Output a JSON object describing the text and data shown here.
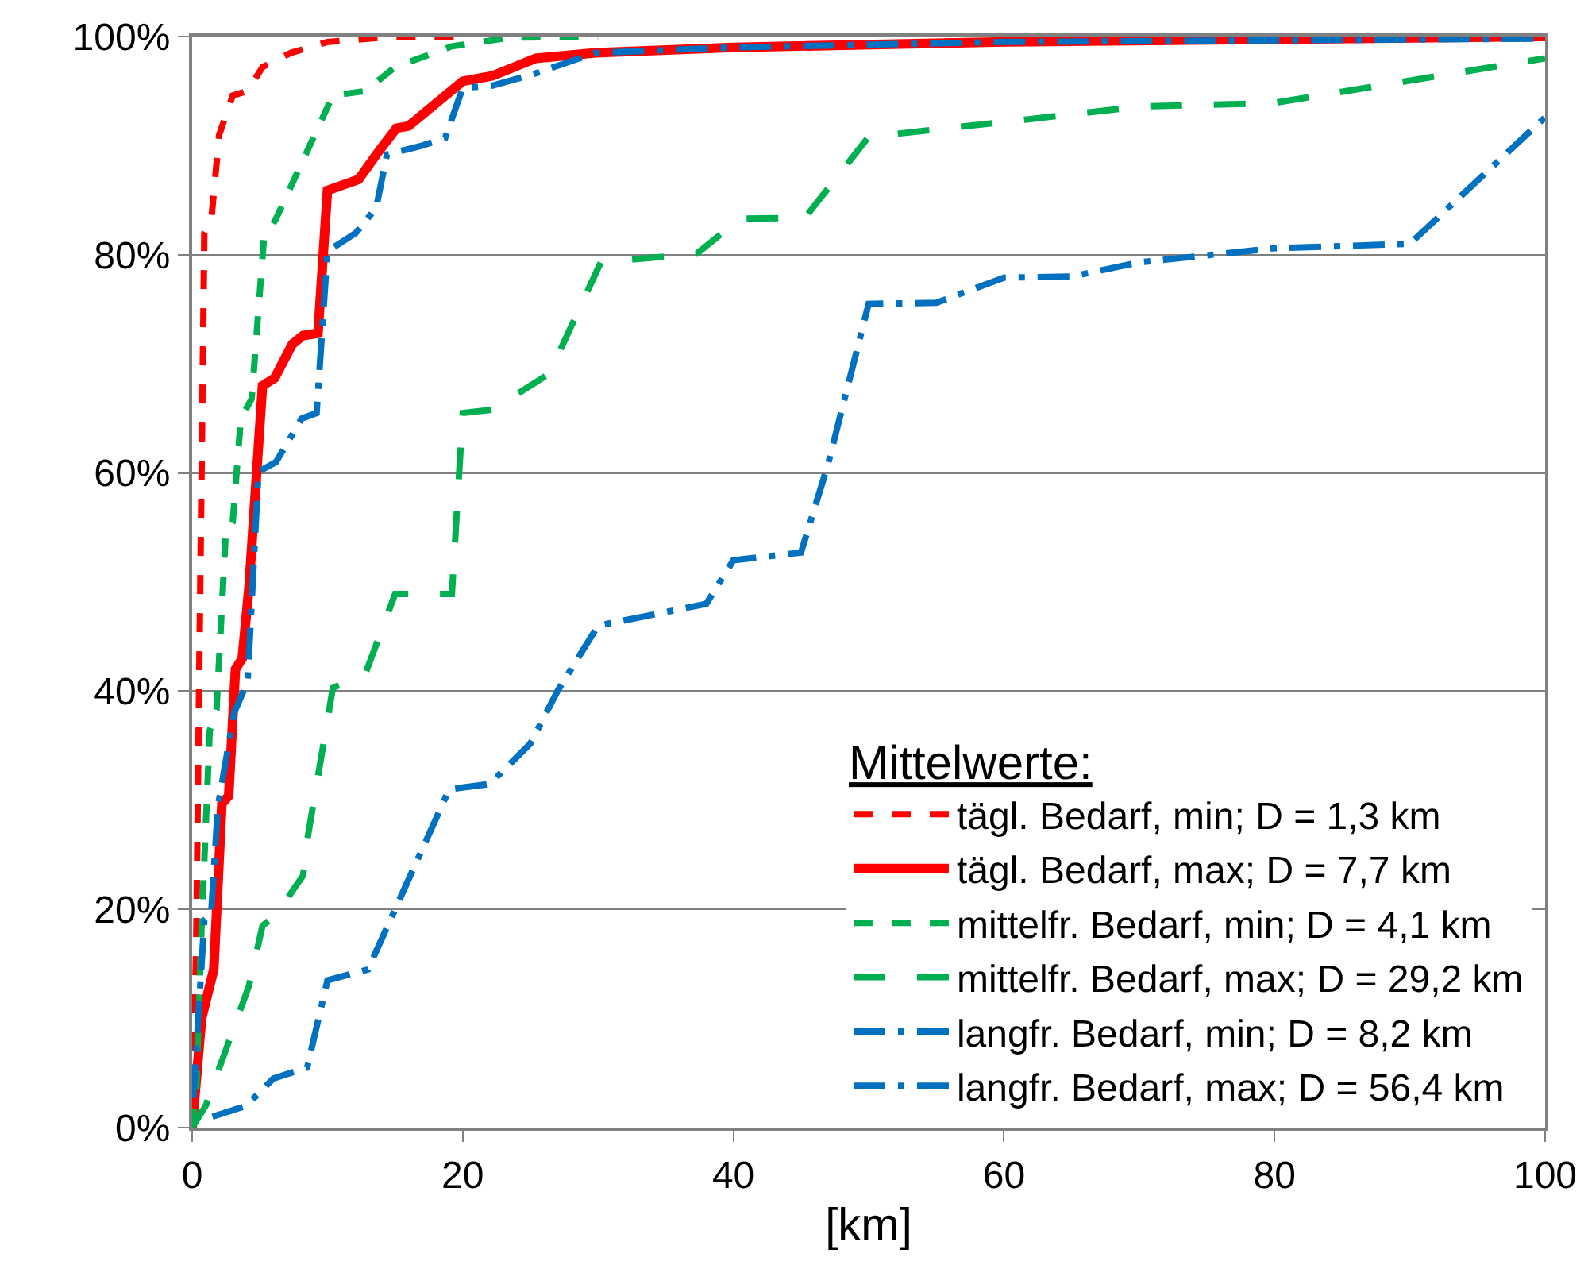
{
  "chart_data": {
    "type": "line",
    "xlabel": "[km]",
    "legend_title": "Mittelwerte:",
    "legend": "bottom right",
    "grid": "y",
    "xlim": [
      0,
      100
    ],
    "xticks": [
      0,
      20,
      40,
      60,
      80,
      100
    ],
    "ylim": [
      0,
      100
    ],
    "yticks": [
      {
        "value": 0,
        "label": "0%"
      },
      {
        "value": 20,
        "label": "20%"
      },
      {
        "value": 40,
        "label": "40%"
      },
      {
        "value": 60,
        "label": "60%"
      },
      {
        "value": 80,
        "label": "80%"
      },
      {
        "value": 100,
        "label": "100%"
      }
    ],
    "series": [
      {
        "name": "tägl. Bedarf, min; D = 1,3 km",
        "color": "#ff0000",
        "line_style": "dashed",
        "x": [
          0,
          0.3,
          0.5,
          0.9,
          1.4,
          2,
          3,
          4.1,
          5.2,
          7.3,
          10,
          15,
          20
        ],
        "values": [
          0,
          17,
          39,
          82,
          83,
          91,
          94.6,
          95,
          97.2,
          98.5,
          99.5,
          100,
          100
        ]
      },
      {
        "name": "tägl. Bedarf, max; D = 7,7 km",
        "color": "#ff0000",
        "line_style": "solid",
        "x": [
          0,
          0.7,
          1.6,
          2.2,
          2.7,
          3.2,
          3.7,
          4.2,
          5.2,
          6.1,
          7.4,
          8.2,
          9.3,
          10,
          12.3,
          13.8,
          15.1,
          16,
          20,
          22.2,
          25.4,
          29.8,
          40,
          60,
          100
        ],
        "values": [
          0,
          10,
          14.5,
          29.7,
          30.4,
          42,
          43,
          49.5,
          68,
          68.7,
          71.8,
          72.6,
          72.8,
          85.9,
          86.9,
          89.5,
          91.6,
          91.8,
          95.9,
          96.4,
          98,
          98.5,
          99,
          99.5,
          100
        ]
      },
      {
        "name": "mittelfr. Bedarf, min; D = 4,1 km",
        "color": "#00b050",
        "line_style": "dashed",
        "x": [
          0,
          0.3,
          0.7,
          1.3,
          1.8,
          2.5,
          3,
          3.6,
          4.4,
          5.3,
          6.2,
          10.4,
          12.8,
          15,
          19.2,
          23.5,
          30
        ],
        "values": [
          0,
          3.2,
          18.5,
          36.4,
          38.3,
          54.9,
          55.5,
          65,
          66.8,
          81.4,
          83.3,
          94.6,
          95,
          97.2,
          99.1,
          99.9,
          100
        ]
      },
      {
        "name": "mittelfr. Bedarf, max; D = 29,2 km",
        "color": "#00b050",
        "line_style": "longdashed",
        "x": [
          0,
          1,
          4.2,
          5.2,
          6.2,
          8.2,
          8.5,
          10.4,
          12.8,
          15,
          19.2,
          20,
          22.2,
          26.4,
          30.2,
          37.3,
          40.5,
          45.3,
          50,
          61.7,
          70.2,
          79.9,
          100
        ],
        "values": [
          0,
          2,
          13,
          18.5,
          19.5,
          23.1,
          26.3,
          40.3,
          41.6,
          48.9,
          48.9,
          65.5,
          65.8,
          69.1,
          79.3,
          80.1,
          83.3,
          83.4,
          90.8,
          92.4,
          93.6,
          93.9,
          98
        ]
      },
      {
        "name": "langfr. Bedarf, min; D = 8,2 km",
        "color": "#0070c0",
        "line_style": "dashdot",
        "x": [
          0,
          0.1,
          0.9,
          1.4,
          1.9,
          3.1,
          4.1,
          4.9,
          6.2,
          8.1,
          9.2,
          10,
          12.1,
          13.6,
          14.4,
          17,
          18.7,
          20,
          22.2,
          25.1,
          29.8,
          40,
          60,
          100
        ],
        "values": [
          3,
          3,
          19,
          19.5,
          29.4,
          38,
          40.9,
          60.1,
          61,
          65,
          65.5,
          80.3,
          82,
          84.3,
          89.2,
          90,
          90.7,
          95.3,
          95.5,
          96.5,
          98.5,
          99,
          99.5,
          99.8
        ]
      },
      {
        "name": "langfr. Bedarf, max; D = 56,4 km",
        "color": "#0070c0",
        "line_style": "dashdot",
        "x": [
          1.5,
          4,
          6,
          8,
          8.5,
          10,
          13,
          15,
          19,
          22,
          25,
          27,
          30,
          38,
          40,
          45,
          47,
          50,
          55,
          60,
          65,
          70,
          80,
          90,
          100
        ],
        "values": [
          1,
          2,
          4.5,
          5.3,
          5.5,
          13.5,
          14.5,
          20,
          31,
          31.5,
          35.2,
          40,
          46,
          48,
          52,
          52.7,
          60.8,
          75.5,
          75.6,
          77.9,
          78,
          79.3,
          80.6,
          81,
          92.6
        ]
      }
    ]
  }
}
